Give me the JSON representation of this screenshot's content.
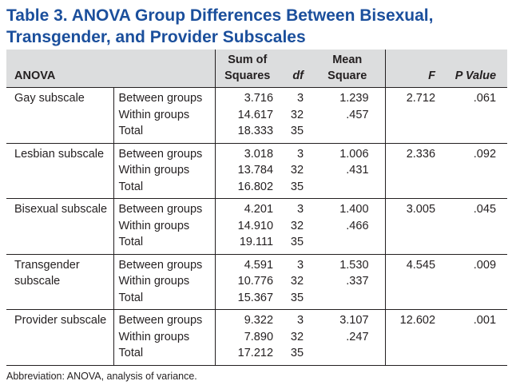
{
  "title": "Table 3. ANOVA Group Differences Between Bisexual, Transgender, and Provider Subscales",
  "header": {
    "anova": "ANOVA",
    "sum_of_squares": "Sum of Squares",
    "df": "df",
    "mean_square": "Mean Square",
    "f": "F",
    "p_value": "P Value"
  },
  "groups": [
    {
      "name": "Gay subscale",
      "rows": [
        {
          "component": "Between groups",
          "ss": "3.716",
          "df": "3",
          "ms": "1.239",
          "f": "2.712",
          "p": ".061"
        },
        {
          "component": "Within groups",
          "ss": "14.617",
          "df": "32",
          "ms": ".457",
          "f": "",
          "p": ""
        },
        {
          "component": "Total",
          "ss": "18.333",
          "df": "35",
          "ms": "",
          "f": "",
          "p": ""
        }
      ]
    },
    {
      "name": "Lesbian subscale",
      "rows": [
        {
          "component": "Between groups",
          "ss": "3.018",
          "df": "3",
          "ms": "1.006",
          "f": "2.336",
          "p": ".092"
        },
        {
          "component": "Within groups",
          "ss": "13.784",
          "df": "32",
          "ms": ".431",
          "f": "",
          "p": ""
        },
        {
          "component": "Total",
          "ss": "16.802",
          "df": "35",
          "ms": "",
          "f": "",
          "p": ""
        }
      ]
    },
    {
      "name": "Bisexual subscale",
      "rows": [
        {
          "component": "Between groups",
          "ss": "4.201",
          "df": "3",
          "ms": "1.400",
          "f": "3.005",
          "p": ".045"
        },
        {
          "component": "Within groups",
          "ss": "14.910",
          "df": "32",
          "ms": ".466",
          "f": "",
          "p": ""
        },
        {
          "component": "Total",
          "ss": "19.111",
          "df": "35",
          "ms": "",
          "f": "",
          "p": ""
        }
      ]
    },
    {
      "name": "Transgender subscale",
      "rows": [
        {
          "component": "Between groups",
          "ss": "4.591",
          "df": "3",
          "ms": "1.530",
          "f": "4.545",
          "p": ".009"
        },
        {
          "component": "Within groups",
          "ss": "10.776",
          "df": "32",
          "ms": ".337",
          "f": "",
          "p": ""
        },
        {
          "component": "Total",
          "ss": "15.367",
          "df": "35",
          "ms": "",
          "f": "",
          "p": ""
        }
      ]
    },
    {
      "name": "Provider subscale",
      "rows": [
        {
          "component": "Between groups",
          "ss": "9.322",
          "df": "3",
          "ms": "3.107",
          "f": "12.602",
          "p": ".001"
        },
        {
          "component": "Within groups",
          "ss": "7.890",
          "df": "32",
          "ms": ".247",
          "f": "",
          "p": ""
        },
        {
          "component": "Total",
          "ss": "17.212",
          "df": "35",
          "ms": "",
          "f": "",
          "p": ""
        }
      ]
    }
  ],
  "footnote": "Abbreviation: ANOVA, analysis of variance."
}
